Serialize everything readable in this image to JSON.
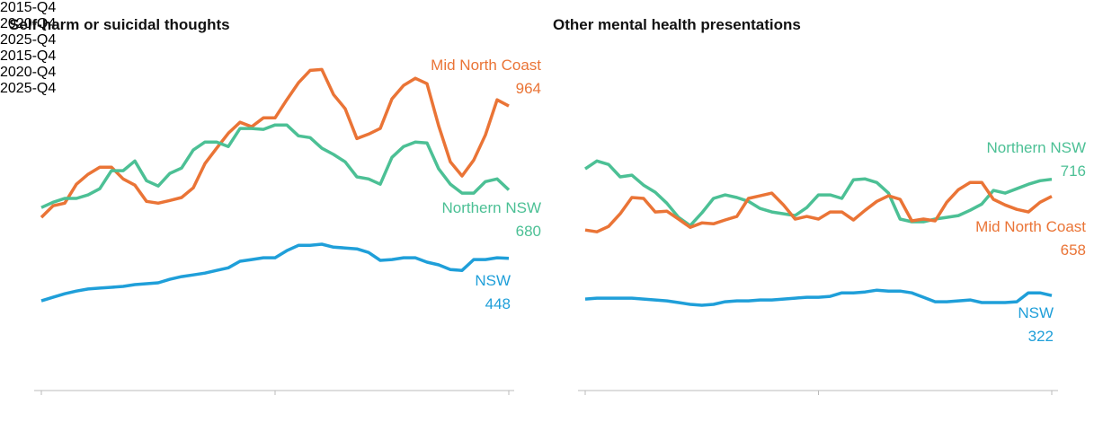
{
  "chart_data": [
    {
      "type": "line",
      "title": "Self-harm or suicidal thoughts",
      "categories": [
        "2015-Q4",
        null,
        null,
        null,
        null,
        null,
        null,
        null,
        null,
        null,
        null,
        null,
        null,
        null,
        null,
        null,
        null,
        null,
        null,
        null,
        "2020-Q4",
        null,
        null,
        null,
        null,
        null,
        null,
        null,
        null,
        null,
        null,
        null,
        null,
        null,
        null,
        null,
        null,
        null,
        null,
        null,
        "2025-Q4"
      ],
      "ylim": [
        0,
        1150
      ],
      "series": [
        {
          "name": "Mid North Coast",
          "color": "#ea7436",
          "values": [
            587,
            626,
            635,
            699,
            733,
            757,
            757,
            717,
            696,
            641,
            635,
            644,
            654,
            687,
            769,
            821,
            872,
            909,
            894,
            924,
            924,
            985,
            1043,
            1085,
            1088,
            1003,
            955,
            854,
            869,
            888,
            988,
            1034,
            1058,
            1040,
            897,
            775,
            727,
            781,
            866,
            985,
            964
          ]
        },
        {
          "name": "Northern NSW",
          "color": "#4cc095",
          "values": [
            620,
            638,
            651,
            651,
            663,
            684,
            745,
            745,
            778,
            711,
            693,
            736,
            754,
            815,
            842,
            842,
            827,
            888,
            888,
            885,
            900,
            900,
            863,
            857,
            821,
            800,
            775,
            724,
            717,
            699,
            790,
            827,
            842,
            839,
            751,
            699,
            669,
            669,
            708,
            717,
            680
          ]
        },
        {
          "name": "NSW",
          "color": "#1f9fd9",
          "values": [
            304,
            316,
            328,
            337,
            344,
            347,
            350,
            353,
            359,
            362,
            365,
            377,
            386,
            392,
            398,
            407,
            416,
            438,
            444,
            450,
            450,
            474,
            492,
            492,
            496,
            486,
            483,
            480,
            468,
            441,
            444,
            450,
            450,
            435,
            426,
            410,
            407,
            444,
            444,
            450,
            448
          ]
        }
      ]
    },
    {
      "type": "line",
      "title": "Other mental health presentations",
      "categories": [
        "2015-Q4",
        null,
        null,
        null,
        null,
        null,
        null,
        null,
        null,
        null,
        null,
        null,
        null,
        null,
        null,
        null,
        null,
        null,
        null,
        null,
        "2020-Q4",
        null,
        null,
        null,
        null,
        null,
        null,
        null,
        null,
        null,
        null,
        null,
        null,
        null,
        null,
        null,
        null,
        null,
        null,
        null,
        "2025-Q4"
      ],
      "ylim": [
        0,
        1150
      ],
      "series": [
        {
          "name": "Northern NSW",
          "color": "#4cc095",
          "values": [
            751,
            778,
            766,
            724,
            730,
            696,
            672,
            635,
            587,
            559,
            602,
            651,
            663,
            654,
            641,
            617,
            605,
            599,
            593,
            620,
            663,
            663,
            651,
            714,
            717,
            705,
            669,
            581,
            572,
            572,
            581,
            587,
            593,
            611,
            632,
            678,
            669,
            684,
            699,
            711,
            716
          ]
        },
        {
          "name": "Mid North Coast",
          "color": "#ea7436",
          "values": [
            544,
            538,
            556,
            599,
            654,
            651,
            605,
            608,
            581,
            553,
            568,
            565,
            578,
            590,
            651,
            660,
            669,
            629,
            581,
            590,
            581,
            605,
            605,
            578,
            611,
            641,
            660,
            648,
            575,
            581,
            575,
            638,
            681,
            705,
            705,
            648,
            629,
            614,
            605,
            638,
            658
          ]
        },
        {
          "name": "NSW",
          "color": "#1f9fd9",
          "values": [
            310,
            313,
            313,
            313,
            313,
            310,
            307,
            304,
            298,
            292,
            289,
            292,
            301,
            304,
            304,
            307,
            307,
            310,
            313,
            316,
            316,
            319,
            331,
            331,
            334,
            340,
            337,
            337,
            331,
            316,
            301,
            301,
            304,
            307,
            298,
            298,
            298,
            301,
            331,
            331,
            322
          ]
        }
      ]
    }
  ]
}
